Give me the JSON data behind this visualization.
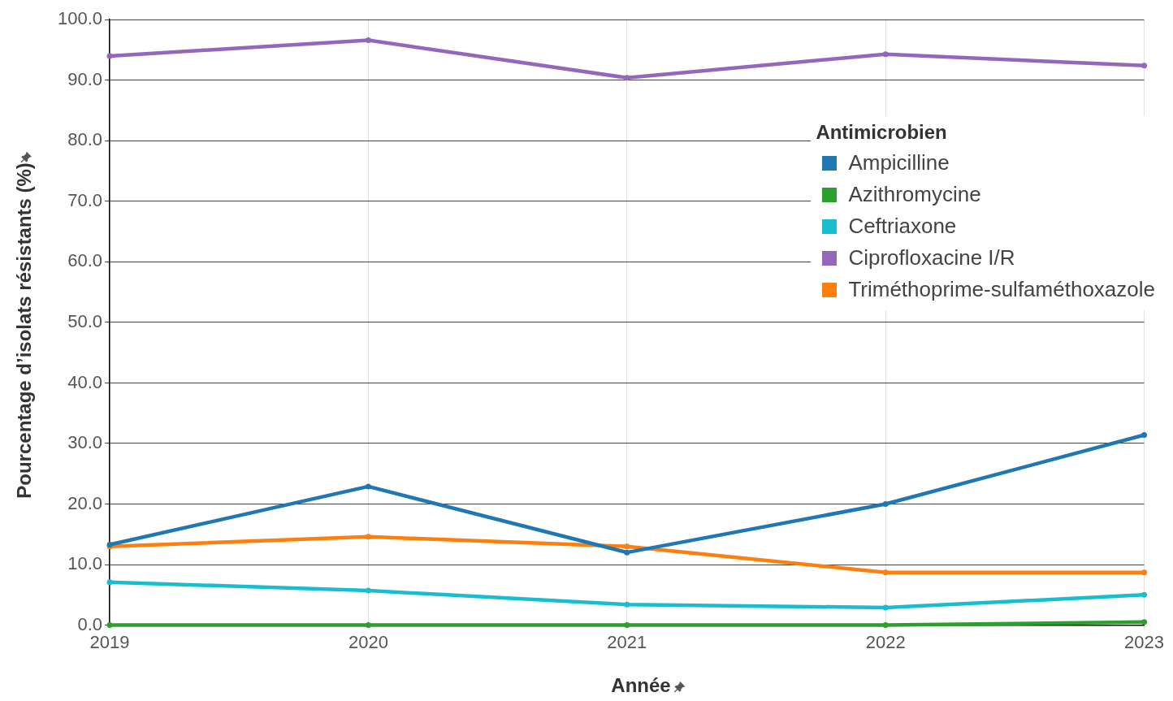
{
  "chart_data": {
    "type": "line",
    "xlabel": "Année",
    "ylabel": "Pourcentage d’isolats résistants (%)",
    "legend_title": "Antimicrobien",
    "legend": "top right",
    "grid": true,
    "marker": "circle",
    "line_style": "solid",
    "x": [
      2019,
      2020,
      2021,
      2022,
      2023
    ],
    "xlim": [
      2019,
      2023
    ],
    "xticks": [
      2019,
      2020,
      2021,
      2022,
      2023
    ],
    "ylim": [
      0,
      100
    ],
    "yticks": [
      {
        "value": 0,
        "label": "0.0"
      },
      {
        "value": 10,
        "label": "10.0"
      },
      {
        "value": 20,
        "label": "20.0"
      },
      {
        "value": 30,
        "label": "30.0"
      },
      {
        "value": 40,
        "label": "40.0"
      },
      {
        "value": 50,
        "label": "50.0"
      },
      {
        "value": 60,
        "label": "60.0"
      },
      {
        "value": 70,
        "label": "70.0"
      },
      {
        "value": 80,
        "label": "80.0"
      },
      {
        "value": 90,
        "label": "90.0"
      },
      {
        "value": 100,
        "label": "100.0"
      }
    ],
    "series": [
      {
        "name": "Ampicilline",
        "color": "#1f77b4",
        "values": [
          13.3,
          22.9,
          12.0,
          20.0,
          31.4
        ]
      },
      {
        "name": "Azithromycine",
        "color": "#2ca02c",
        "values": [
          0,
          0,
          0,
          0,
          0.5
        ]
      },
      {
        "name": "Ceftriaxone",
        "color": "#17becf",
        "values": [
          7.1,
          5.7,
          3.4,
          2.9,
          5.0
        ]
      },
      {
        "name": "Ciprofloxacine I/R",
        "color": "#9467bd",
        "values": [
          94.0,
          96.6,
          90.4,
          94.3,
          92.4
        ]
      },
      {
        "name": "Triméthoprime-sulfaméthoxazole",
        "color": "#ff7f0e",
        "values": [
          13.0,
          14.6,
          13.0,
          8.7,
          8.7
        ]
      }
    ]
  }
}
